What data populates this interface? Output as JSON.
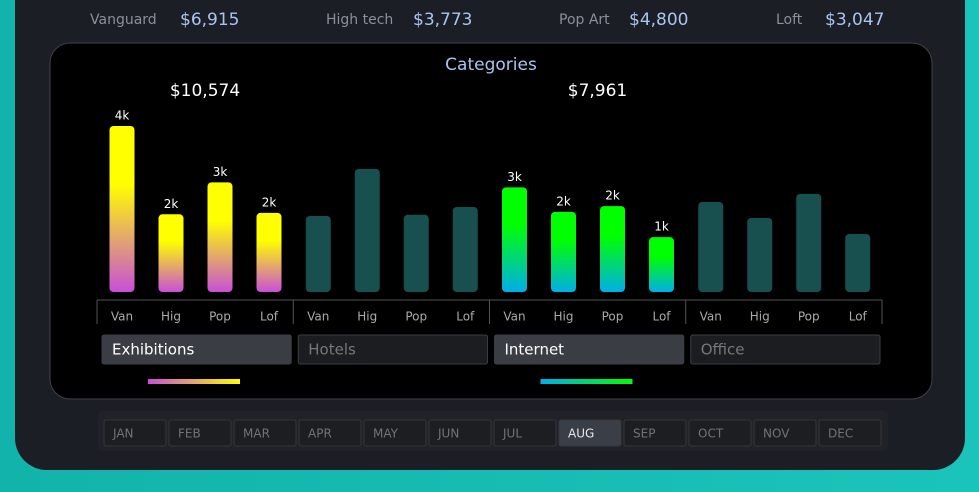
{
  "stats": [
    {
      "label": "Vanguard",
      "value": "$6,915"
    },
    {
      "label": "High tech",
      "value": "$3,773"
    },
    {
      "label": "Pop Art",
      "value": "$4,800"
    },
    {
      "label": "Loft",
      "value": "$3,047"
    }
  ],
  "chart_data": {
    "type": "bar",
    "title": "Categories",
    "categories": [
      "Van",
      "Hig",
      "Pop",
      "Lof"
    ],
    "ylim": [
      0,
      4500
    ],
    "series": [
      {
        "name": "Exhibitions",
        "selected": true,
        "colors": [
          "#ffff00",
          "#c84fd8"
        ],
        "values": [
          4060,
          1900,
          2680,
          1934
        ],
        "value_labels": [
          "4k",
          "2k",
          "3k",
          "2k"
        ],
        "total": 10574,
        "total_label": "$10,574"
      },
      {
        "name": "Hotels",
        "selected": false,
        "colors": [
          "#17504f",
          "#17504f"
        ],
        "values": [
          1860,
          3010,
          1890,
          2080
        ]
      },
      {
        "name": "Internet",
        "selected": true,
        "colors": [
          "#00ff00",
          "#00aee8"
        ],
        "values": [
          2560,
          1960,
          2100,
          1341
        ],
        "value_labels": [
          "3k",
          "2k",
          "2k",
          "1k"
        ],
        "total": 7961,
        "total_label": "$7,961"
      },
      {
        "name": "Office",
        "selected": false,
        "colors": [
          "#17504f",
          "#17504f"
        ],
        "values": [
          2200,
          1810,
          2400,
          1420
        ]
      }
    ]
  },
  "months": [
    "JAN",
    "FEB",
    "MAR",
    "APR",
    "MAY",
    "JUN",
    "JUL",
    "AUG",
    "SEP",
    "OCT",
    "NOV",
    "DEC"
  ],
  "selected_month": 7
}
